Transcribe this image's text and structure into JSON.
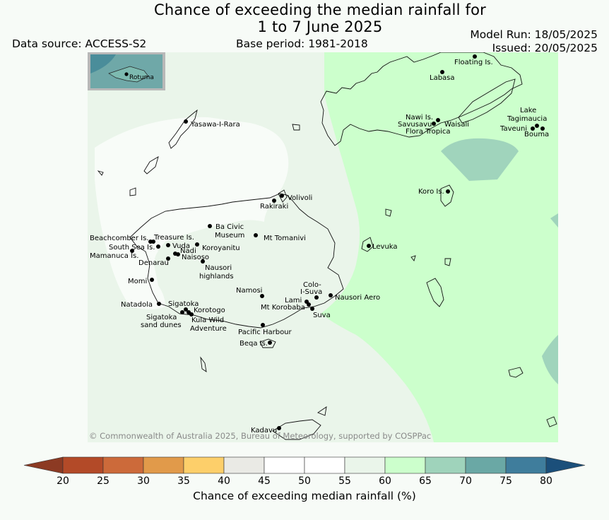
{
  "title_line1": "Chance of exceeding the median rainfall for",
  "title_line2": "1 to 7 June 2025",
  "data_source": "Data source: ACCESS-S2",
  "base_period": "Base period: 1981-2018",
  "model_run": "Model Run: 18/05/2025",
  "issued": "Issued: 20/05/2025",
  "copyright": "© Commonwealth of Australia 2025, Bureau of Meteorology, supported by COSPPac",
  "inset_label": "Rotuma",
  "colorbar": {
    "label": "Chance of exceeding median rainfall (%)",
    "ticks": [
      "20",
      "25",
      "30",
      "35",
      "40",
      "45",
      "50",
      "55",
      "60",
      "65",
      "70",
      "75",
      "80"
    ],
    "colors": [
      "#b34a28",
      "#cc6a3a",
      "#e19a4a",
      "#fdcf6a",
      "#eaeae5",
      "#ffffff",
      "#ffffff",
      "#eaf5ea",
      "#ccffcc",
      "#9fd3bb",
      "#6aa8a5",
      "#3f7d9c"
    ],
    "low_color": "#8c3a23",
    "high_color": "#1b4f7a"
  },
  "places": [
    {
      "name": "Floating Is."
    },
    {
      "name": "Labasa"
    },
    {
      "name": "Yasawa-I-Rara"
    },
    {
      "name": "Nawi Is."
    },
    {
      "name": "Savusavu"
    },
    {
      "name": "Waisali"
    },
    {
      "name": "Flora Tropica"
    },
    {
      "name": "Lake Tagimaucia"
    },
    {
      "name": "Taveuni"
    },
    {
      "name": "Bouma"
    },
    {
      "name": "Koro Is."
    },
    {
      "name": "Volivoli"
    },
    {
      "name": "Rakiraki"
    },
    {
      "name": "Ba Civic Museum"
    },
    {
      "name": "Mt Tomanivi"
    },
    {
      "name": "Beachcomber Is."
    },
    {
      "name": "Treasure Is."
    },
    {
      "name": "South Sea Is."
    },
    {
      "name": "Vuda"
    },
    {
      "name": "Koroyanitu"
    },
    {
      "name": "Nadi"
    },
    {
      "name": "Mamanuca Is."
    },
    {
      "name": "Naisoso"
    },
    {
      "name": "Denarau"
    },
    {
      "name": "Nausori highlands"
    },
    {
      "name": "Levuka"
    },
    {
      "name": "Momi"
    },
    {
      "name": "Namosi"
    },
    {
      "name": "Colo-I-Suva"
    },
    {
      "name": "Lami"
    },
    {
      "name": "Nausori Aero"
    },
    {
      "name": "Mt Korobaba"
    },
    {
      "name": "Suva"
    },
    {
      "name": "Natadola"
    },
    {
      "name": "Sigatoka"
    },
    {
      "name": "Korotogo"
    },
    {
      "name": "Sigatoka sand dunes"
    },
    {
      "name": "Kula Wild Adventure"
    },
    {
      "name": "Pacific Harbour"
    },
    {
      "name": "Beqa Is."
    },
    {
      "name": "Kadavu"
    }
  ]
}
